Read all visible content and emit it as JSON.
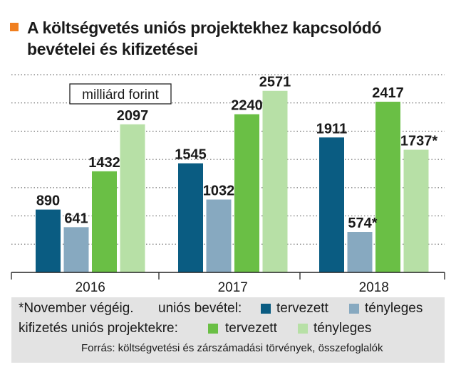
{
  "header": {
    "title_line1": "A költségvetés uniós projektekhez kapcsolódó",
    "title_line2": "bevételei és kifizetései"
  },
  "chart_data": {
    "type": "bar",
    "unit_label": "milliárd forint",
    "categories": [
      "2016",
      "2017",
      "2018"
    ],
    "series": [
      {
        "name": "uniós bevétel: tervezett",
        "color": "#0a5c82",
        "values": [
          890,
          1545,
          1911
        ],
        "labels": [
          "890",
          "1545",
          "1911"
        ]
      },
      {
        "name": "uniós bevétel: tényleges",
        "color": "#87a9c0",
        "values": [
          641,
          1032,
          574
        ],
        "labels": [
          "641",
          "1032",
          "574*"
        ]
      },
      {
        "name": "kifizetés uniós projektekre: tervezett",
        "color": "#6abf45",
        "values": [
          1432,
          2240,
          2417
        ],
        "labels": [
          "1432",
          "2240",
          "2417"
        ]
      },
      {
        "name": "kifizetés uniós projektekre: tényleges",
        "color": "#b7e0a6",
        "values": [
          2097,
          2571,
          1737
        ],
        "labels": [
          "2097",
          "2571",
          "1737*"
        ]
      }
    ],
    "ylim": [
      0,
      2800
    ],
    "grid": true
  },
  "legend": {
    "footnote": "*November végéig.",
    "income_label": "uniós bevétel:",
    "payment_label": "kifizetés uniós projektekre:",
    "planned": "tervezett",
    "actual": "tényleges",
    "source": "Forrás: költségvetési és zárszámadási törvények, összefoglalók"
  }
}
